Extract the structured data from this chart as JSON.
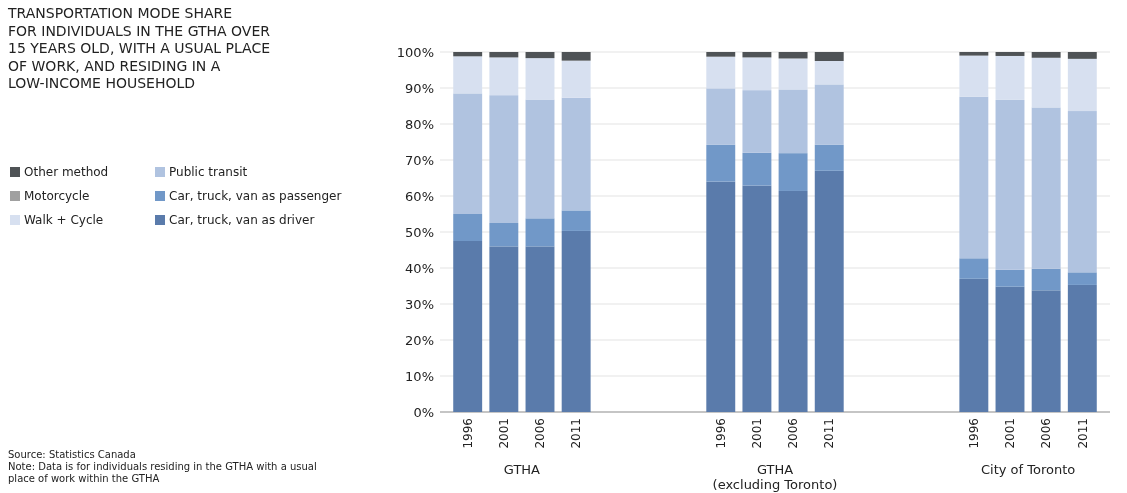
{
  "chart_data": {
    "type": "bar",
    "stacked": true,
    "title": "TRANSPORTATION MODE SHARE\nFOR INDIVIDUALS IN THE GTHA OVER\n15 YEARS OLD, WITH A USUAL PLACE\nOF WORK, AND RESIDING IN A\nLOW-INCOME HOUSEHOLD",
    "categories": [
      "1996",
      "2001",
      "2006",
      "2011",
      null,
      null,
      null,
      "1996",
      "2001",
      "2006",
      "2011",
      null,
      null,
      null,
      "1996",
      "2001",
      "2006",
      "2011"
    ],
    "ylim": [
      0,
      100
    ],
    "yticks": [
      {
        "value": 0,
        "label": "0%"
      },
      {
        "value": 10,
        "label": "10%"
      },
      {
        "value": 20,
        "label": "20%"
      },
      {
        "value": 30,
        "label": "30%"
      },
      {
        "value": 40,
        "label": "40%"
      },
      {
        "value": 50,
        "label": "50%"
      },
      {
        "value": 60,
        "label": "60%"
      },
      {
        "value": 70,
        "label": "70%"
      },
      {
        "value": 80,
        "label": "80%"
      },
      {
        "value": 90,
        "label": "90%"
      },
      {
        "value": 100,
        "label": "100%"
      }
    ],
    "grid": "y",
    "legend": "left",
    "annotations": [
      "GTHA",
      "GTHA\n(excluding Toronto)",
      "City of Toronto",
      "Source: Statistics Canada",
      "Note: Data is for individuals residing in the GTHA with a usual\nplace of work within the GTHA"
    ],
    "series": [
      {
        "name": "Car, truck, van as driver",
        "color": "#5a7bab",
        "values": [
          47.5,
          46.0,
          46.0,
          50.3,
          null,
          null,
          null,
          64.0,
          62.9,
          61.4,
          67.0,
          null,
          null,
          null,
          37.0,
          34.8,
          33.8,
          35.3
        ]
      },
      {
        "name": "Car, truck, van as passenger",
        "color": "#7198c8",
        "values": [
          7.5,
          6.5,
          7.8,
          5.7,
          null,
          null,
          null,
          10.2,
          9.1,
          10.5,
          7.2,
          null,
          null,
          null,
          5.7,
          4.7,
          6.0,
          3.5
        ]
      },
      {
        "name": "Public transit",
        "color": "#b0c3e0",
        "values": [
          33.5,
          35.5,
          33.0,
          31.3,
          null,
          null,
          null,
          15.7,
          17.4,
          17.7,
          16.8,
          null,
          null,
          null,
          44.9,
          47.2,
          44.8,
          44.8
        ]
      },
      {
        "name": "Walk + Cycle",
        "color": "#d7e0f0",
        "values": [
          10.3,
          10.5,
          11.5,
          10.3,
          null,
          null,
          null,
          8.8,
          9.1,
          8.6,
          6.5,
          null,
          null,
          null,
          11.4,
          12.2,
          13.8,
          14.5
        ]
      },
      {
        "name": "Motorcycle",
        "color": "#a0a0a0",
        "values": [
          null,
          null,
          null,
          null,
          null,
          null,
          null,
          null,
          null,
          null,
          null,
          null,
          null,
          null,
          null,
          null,
          null,
          null
        ]
      },
      {
        "name": "Other method",
        "color": "#4f5356",
        "values": [
          1.2,
          1.5,
          1.7,
          2.4,
          null,
          null,
          null,
          1.3,
          1.5,
          1.8,
          2.5,
          null,
          null,
          null,
          1.0,
          1.1,
          1.6,
          1.9
        ]
      }
    ]
  }
}
